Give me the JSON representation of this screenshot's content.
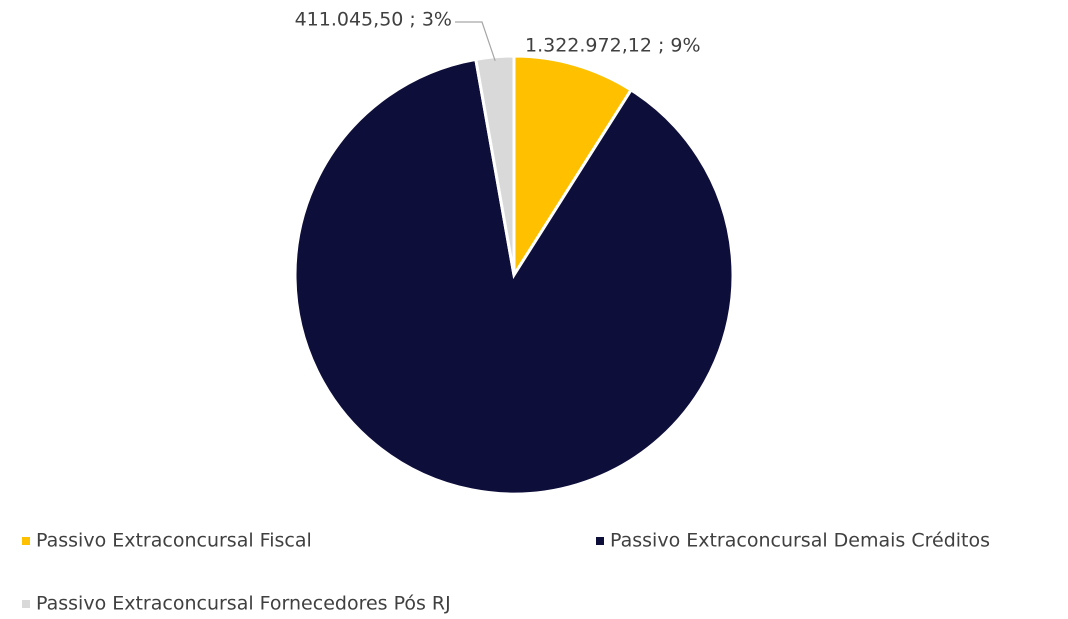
{
  "chart_data": {
    "type": "pie",
    "categories": [
      "Passivo Extraconcursal Fiscal",
      "Passivo Extraconcursal Demais Créditos",
      "Passivo Extraconcursal Fornecedores Pós RJ"
    ],
    "values": [
      1322972.12,
      13000000,
      411045.5
    ],
    "value_labels": [
      "1.322.972,12 ; 9%",
      null,
      "411.045,50 ; 3%"
    ],
    "colors": [
      "#FFC000",
      "#0E0E3A",
      "#D9D9D9"
    ],
    "legend": "bottom"
  }
}
